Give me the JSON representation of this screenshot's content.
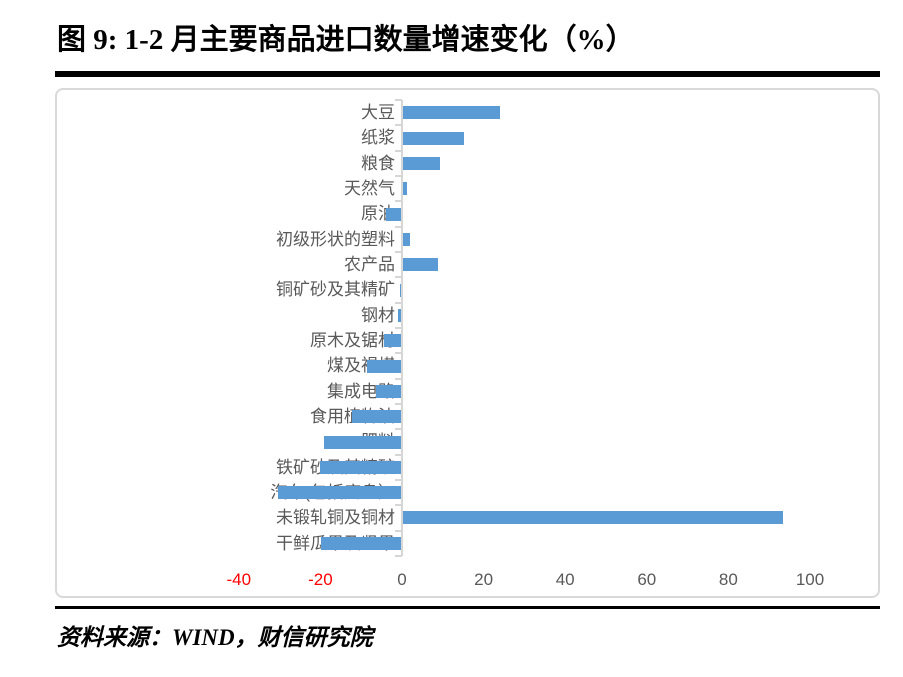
{
  "figure": {
    "title": "图 9: 1-2 月主要商品进口数量增速变化（%）",
    "source": "资料来源：WIND，财信研究院"
  },
  "chart_data": {
    "type": "bar",
    "orientation": "horizontal",
    "title": "图 9: 1-2 月主要商品进口数量增速变化（%）",
    "categories": [
      "大豆",
      "纸浆",
      "粮食",
      "天然气",
      "原油",
      "初级形状的塑料",
      "农产品",
      "铜矿砂及其精矿",
      "钢材",
      "原木及锯材",
      "煤及褐煤",
      "集成电路",
      "食用植物油",
      "肥料",
      "铁矿砂及其精矿",
      "汽车(包括底盘）",
      "未锻轧铜及铜材",
      "干鲜瓜果及坚果"
    ],
    "values": [
      24,
      15.2,
      9.2,
      1.1,
      -3.9,
      2,
      8.8,
      -0.5,
      -0.9,
      -4.5,
      -8.6,
      -6.4,
      -12.2,
      -19.1,
      -20.1,
      -30.4,
      93.4,
      -19.9
    ],
    "xlabel": "",
    "ylabel": "",
    "xtick_labels": [
      "-40",
      "-20",
      "0",
      "20",
      "40",
      "60",
      "80",
      "100"
    ],
    "xtick_values": [
      -40,
      -20,
      0,
      20,
      40,
      60,
      80,
      100
    ],
    "xlim": [
      -40,
      112
    ],
    "grid": false,
    "legend": false,
    "colors": {
      "bar": "#5B9BD5",
      "axis_line": "#D6D6D6",
      "category_label": "#595959",
      "tick_label": "#595959",
      "tick_label_negative": "#FF0000"
    }
  }
}
